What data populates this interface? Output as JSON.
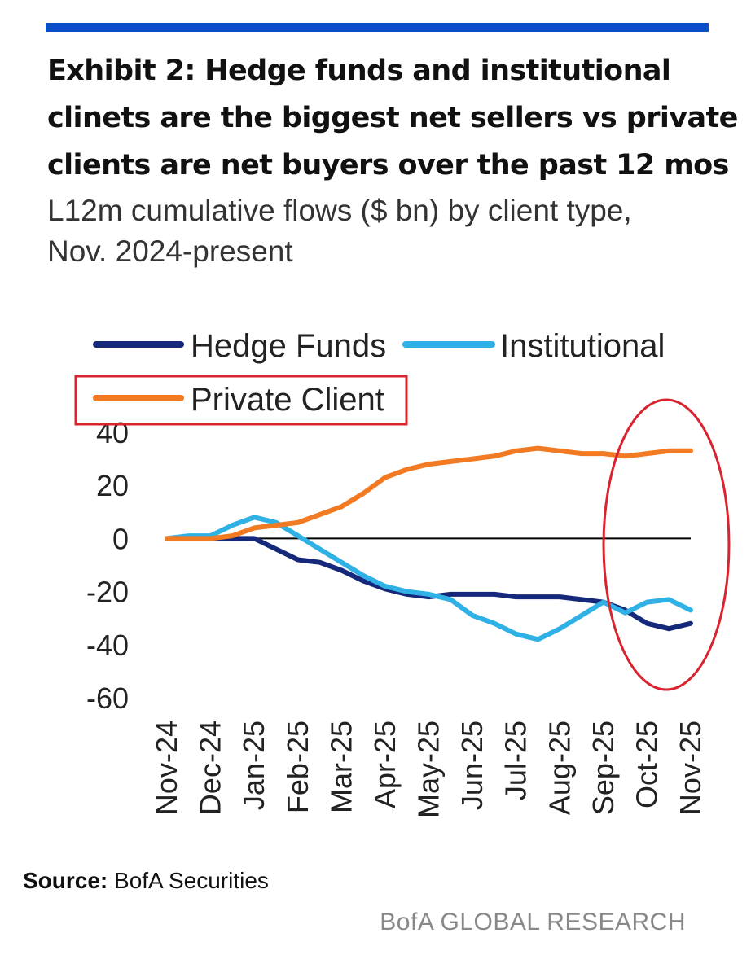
{
  "header": {
    "title_lines": [
      "Exhibit 2: Hedge funds and institutional",
      "clinets are the biggest net sellers vs private",
      "clients are net buyers over the past 12 mos"
    ],
    "subtitle_lines": [
      "L12m cumulative flows ($ bn) by client type,",
      "Nov. 2024-present"
    ]
  },
  "footer": {
    "source_label": "Source:",
    "source_text": " BofA Securities",
    "brand": "BofA GLOBAL RESEARCH"
  },
  "colors": {
    "accent_bar": "#0a4fc7",
    "highlight": "#d9232e"
  },
  "chart_data": {
    "type": "line",
    "title": "Exhibit 2: Hedge funds and institutional clinets are the biggest net sellers vs private clients are net buyers over the past 12 mos",
    "subtitle": "L12m cumulative flows ($ bn) by client type, Nov. 2024-present",
    "legend_placement": "top",
    "grid": false,
    "ylim": [
      -60,
      40
    ],
    "yticks": [
      "40",
      "20",
      "0",
      "-20",
      "-40",
      "-60"
    ],
    "xtick_labels": [
      "Nov-24",
      "Dec-24",
      "Jan-25",
      "Feb-25",
      "Mar-25",
      "Apr-25",
      "May-25",
      "Jun-25",
      "Jul-25",
      "Aug-25",
      "Sep-25",
      "Oct-25",
      "Nov-25"
    ],
    "x_month_index": [
      0,
      0.5,
      1,
      1.5,
      2,
      2.5,
      3,
      3.5,
      4,
      4.5,
      5,
      5.5,
      6,
      6.5,
      7,
      7.5,
      8,
      8.5,
      9,
      9.5,
      10,
      10.5,
      11,
      11.5,
      12
    ],
    "series": [
      {
        "name": "Hedge Funds",
        "color": "#15287a",
        "values": [
          0,
          0,
          0,
          0,
          0,
          -4,
          -8,
          -9,
          -12,
          -16,
          -19,
          -21,
          -22,
          -21,
          -21,
          -21,
          -22,
          -22,
          -22,
          -23,
          -24,
          -27,
          -32,
          -34,
          -32
        ]
      },
      {
        "name": "Institutional",
        "color": "#2fb1e6",
        "values": [
          0,
          1,
          1,
          5,
          8,
          6,
          1,
          -4,
          -9,
          -14,
          -18,
          -20,
          -21,
          -23,
          -29,
          -32,
          -36,
          -38,
          -34,
          -29,
          -24,
          -28,
          -24,
          -23,
          -27
        ]
      },
      {
        "name": "Private Client",
        "color": "#f27a23",
        "values": [
          0,
          0,
          0,
          1,
          4,
          5,
          6,
          9,
          12,
          17,
          23,
          26,
          28,
          29,
          30,
          31,
          33,
          34,
          33,
          32,
          32,
          31,
          32,
          33,
          33
        ]
      }
    ]
  }
}
